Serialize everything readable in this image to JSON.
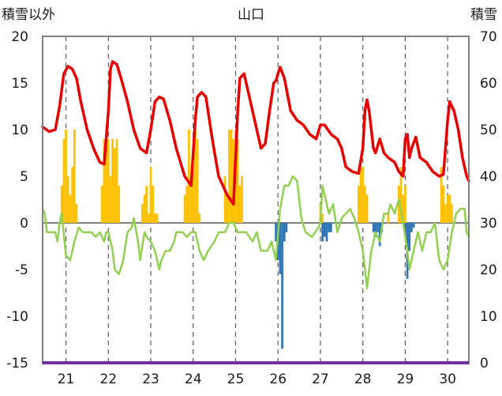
{
  "chart_data": {
    "type": "line",
    "title": "山口",
    "ylabel_left": "積雪以外",
    "ylabel_right": "積雪",
    "ylim_left": [
      -15,
      20
    ],
    "ylim_right": [
      0,
      70
    ],
    "yticks_left": [
      "20",
      "15",
      "10",
      "5",
      "0",
      "-5",
      "-10",
      "-15"
    ],
    "yticks_right": [
      "70",
      "60",
      "50",
      "40",
      "30",
      "20",
      "10",
      "0"
    ],
    "x_labels": [
      "21",
      "22",
      "23",
      "24",
      "25",
      "26",
      "27",
      "28",
      "29",
      "30"
    ],
    "x_range": [
      20.45,
      30.5
    ],
    "grid": "vertical dashed at each day, horizontal solid at y=0",
    "colors": {
      "temperature": "#e60000",
      "change_line": "#92d050",
      "positive_bars": "#ffc000",
      "negative_bars": "#2e75b6",
      "baseline": "#7030a0",
      "frame": "#7f7f7f"
    },
    "series": [
      {
        "key": "temperature",
        "color": "#e60000",
        "points": [
          [
            20.45,
            10.3
          ],
          [
            20.6,
            9.8
          ],
          [
            20.75,
            10
          ],
          [
            20.85,
            12.5
          ],
          [
            20.95,
            16
          ],
          [
            21.05,
            16.8
          ],
          [
            21.15,
            16.5
          ],
          [
            21.25,
            15.5
          ],
          [
            21.35,
            13
          ],
          [
            21.5,
            10
          ],
          [
            21.65,
            8
          ],
          [
            21.8,
            6.5
          ],
          [
            21.9,
            6.3
          ],
          [
            22.0,
            12
          ],
          [
            22.05,
            16.5
          ],
          [
            22.1,
            17.3
          ],
          [
            22.2,
            17
          ],
          [
            22.3,
            15.5
          ],
          [
            22.45,
            13
          ],
          [
            22.6,
            10
          ],
          [
            22.75,
            8
          ],
          [
            22.9,
            7.5
          ],
          [
            23.0,
            10
          ],
          [
            23.1,
            13
          ],
          [
            23.2,
            13.5
          ],
          [
            23.3,
            13.3
          ],
          [
            23.45,
            11
          ],
          [
            23.6,
            8
          ],
          [
            23.8,
            5
          ],
          [
            23.95,
            4
          ],
          [
            24.05,
            11
          ],
          [
            24.1,
            13.5
          ],
          [
            24.2,
            14
          ],
          [
            24.3,
            13.5
          ],
          [
            24.45,
            9
          ],
          [
            24.6,
            5
          ],
          [
            24.8,
            3
          ],
          [
            24.95,
            2
          ],
          [
            25.05,
            12
          ],
          [
            25.1,
            15.5
          ],
          [
            25.2,
            16
          ],
          [
            25.35,
            13
          ],
          [
            25.5,
            10
          ],
          [
            25.6,
            8
          ],
          [
            25.7,
            8.5
          ],
          [
            25.8,
            12
          ],
          [
            25.9,
            15
          ],
          [
            25.95,
            15.2
          ],
          [
            26.0,
            16
          ],
          [
            26.05,
            16.7
          ],
          [
            26.15,
            15.5
          ],
          [
            26.3,
            12
          ],
          [
            26.45,
            11
          ],
          [
            26.6,
            10.5
          ],
          [
            26.75,
            9.5
          ],
          [
            26.9,
            9
          ],
          [
            27.0,
            10.5
          ],
          [
            27.1,
            10.5
          ],
          [
            27.25,
            9.5
          ],
          [
            27.4,
            9
          ],
          [
            27.5,
            8
          ],
          [
            27.6,
            6
          ],
          [
            27.75,
            5.5
          ],
          [
            27.9,
            5.3
          ],
          [
            28.0,
            8
          ],
          [
            28.05,
            12
          ],
          [
            28.1,
            13.2
          ],
          [
            28.15,
            12
          ],
          [
            28.25,
            8
          ],
          [
            28.3,
            7.5
          ],
          [
            28.4,
            9
          ],
          [
            28.5,
            7.5
          ],
          [
            28.6,
            7
          ],
          [
            28.75,
            6.5
          ],
          [
            28.85,
            5.5
          ],
          [
            28.95,
            5
          ],
          [
            29.0,
            9
          ],
          [
            29.05,
            9.5
          ],
          [
            29.1,
            7
          ],
          [
            29.15,
            8
          ],
          [
            29.25,
            9.2
          ],
          [
            29.35,
            7
          ],
          [
            29.5,
            6.5
          ],
          [
            29.65,
            5.5
          ],
          [
            29.8,
            5
          ],
          [
            29.9,
            5.2
          ],
          [
            29.95,
            8
          ],
          [
            30.0,
            11
          ],
          [
            30.05,
            13
          ],
          [
            30.15,
            12
          ],
          [
            30.25,
            10
          ],
          [
            30.35,
            7
          ],
          [
            30.45,
            5
          ],
          [
            30.5,
            4.5
          ]
        ]
      },
      {
        "key": "change_line",
        "color": "#92d050",
        "points": [
          [
            20.45,
            1.5
          ],
          [
            20.5,
            1
          ],
          [
            20.55,
            -1
          ],
          [
            20.75,
            -1
          ],
          [
            20.8,
            -2
          ],
          [
            20.85,
            0
          ],
          [
            20.9,
            1
          ],
          [
            21.0,
            -3.5
          ],
          [
            21.1,
            -4
          ],
          [
            21.2,
            -2
          ],
          [
            21.3,
            -0.5
          ],
          [
            21.4,
            -1
          ],
          [
            21.6,
            -1
          ],
          [
            21.7,
            -1.5
          ],
          [
            21.8,
            -1
          ],
          [
            21.9,
            -2
          ],
          [
            21.95,
            -1
          ],
          [
            22.0,
            -1
          ],
          [
            22.1,
            -3
          ],
          [
            22.15,
            -5
          ],
          [
            22.25,
            -5.5
          ],
          [
            22.35,
            -4
          ],
          [
            22.45,
            -1
          ],
          [
            22.55,
            -0.5
          ],
          [
            22.6,
            0.5
          ],
          [
            22.7,
            -2
          ],
          [
            22.75,
            -4
          ],
          [
            22.85,
            -1
          ],
          [
            22.9,
            -1.5
          ],
          [
            23.0,
            -2
          ],
          [
            23.1,
            -3
          ],
          [
            23.2,
            -5
          ],
          [
            23.25,
            -4
          ],
          [
            23.35,
            -3
          ],
          [
            23.45,
            -3
          ],
          [
            23.55,
            -2
          ],
          [
            23.6,
            -1
          ],
          [
            23.75,
            -1
          ],
          [
            23.85,
            -1.5
          ],
          [
            23.95,
            -1
          ],
          [
            24.05,
            -1
          ],
          [
            24.15,
            -3
          ],
          [
            24.25,
            -4
          ],
          [
            24.35,
            -3
          ],
          [
            24.5,
            -2
          ],
          [
            24.6,
            -1
          ],
          [
            24.75,
            -1
          ],
          [
            24.85,
            0
          ],
          [
            24.95,
            0
          ],
          [
            25.05,
            -1
          ],
          [
            25.15,
            -1
          ],
          [
            25.25,
            -1
          ],
          [
            25.4,
            -2
          ],
          [
            25.5,
            -1
          ],
          [
            25.6,
            -3
          ],
          [
            25.75,
            -3
          ],
          [
            25.85,
            -2
          ],
          [
            25.95,
            -4
          ],
          [
            26.05,
            1.5
          ],
          [
            26.15,
            4
          ],
          [
            26.25,
            4
          ],
          [
            26.35,
            5
          ],
          [
            26.45,
            4.5
          ],
          [
            26.55,
            0.5
          ],
          [
            26.65,
            -1
          ],
          [
            26.8,
            -1.5
          ],
          [
            26.95,
            -0.5
          ],
          [
            27.0,
            0
          ],
          [
            27.05,
            4
          ],
          [
            27.1,
            3
          ],
          [
            27.2,
            1
          ],
          [
            27.3,
            2
          ],
          [
            27.4,
            -1
          ],
          [
            27.5,
            0.5
          ],
          [
            27.6,
            1
          ],
          [
            27.7,
            1.5
          ],
          [
            27.8,
            0.5
          ],
          [
            27.9,
            -1
          ],
          [
            28.0,
            -3
          ],
          [
            28.05,
            -5
          ],
          [
            28.1,
            -7
          ],
          [
            28.2,
            -3
          ],
          [
            28.3,
            -1
          ],
          [
            28.4,
            -2
          ],
          [
            28.5,
            1
          ],
          [
            28.6,
            1
          ],
          [
            28.65,
            2
          ],
          [
            28.75,
            1
          ],
          [
            28.85,
            2.5
          ],
          [
            28.95,
            0
          ],
          [
            29.05,
            -3
          ],
          [
            29.1,
            -5
          ],
          [
            29.2,
            -3
          ],
          [
            29.3,
            -1
          ],
          [
            29.4,
            -3
          ],
          [
            29.5,
            -1
          ],
          [
            29.6,
            -1
          ],
          [
            29.7,
            0
          ],
          [
            29.8,
            -4
          ],
          [
            29.9,
            -5
          ],
          [
            30.0,
            -4
          ],
          [
            30.1,
            -1
          ],
          [
            30.2,
            1
          ],
          [
            30.3,
            1.5
          ],
          [
            30.4,
            1.5
          ],
          [
            30.45,
            -1
          ],
          [
            30.5,
            -1.5
          ]
        ]
      },
      {
        "key": "positive_bars",
        "color": "#ffc000",
        "bars": [
          [
            20.9,
            4
          ],
          [
            20.95,
            9
          ],
          [
            21.0,
            10
          ],
          [
            21.05,
            5
          ],
          [
            21.1,
            3
          ],
          [
            21.15,
            6
          ],
          [
            21.2,
            10
          ],
          [
            21.25,
            2
          ],
          [
            21.85,
            4
          ],
          [
            21.9,
            9
          ],
          [
            21.95,
            9
          ],
          [
            22.0,
            9
          ],
          [
            22.05,
            5
          ],
          [
            22.1,
            9
          ],
          [
            22.15,
            8
          ],
          [
            22.2,
            9
          ],
          [
            22.25,
            4
          ],
          [
            22.8,
            2
          ],
          [
            22.85,
            3
          ],
          [
            22.9,
            4
          ],
          [
            22.95,
            1
          ],
          [
            23.0,
            6
          ],
          [
            23.05,
            4
          ],
          [
            23.1,
            1
          ],
          [
            23.15,
            1
          ],
          [
            23.8,
            3
          ],
          [
            23.85,
            4
          ],
          [
            23.9,
            10
          ],
          [
            23.95,
            5
          ],
          [
            24.0,
            6
          ],
          [
            24.05,
            10
          ],
          [
            24.1,
            9
          ],
          [
            24.15,
            1
          ],
          [
            24.75,
            5
          ],
          [
            24.8,
            3
          ],
          [
            24.85,
            10
          ],
          [
            24.9,
            10
          ],
          [
            24.95,
            9
          ],
          [
            25.0,
            10
          ],
          [
            25.05,
            9
          ],
          [
            25.1,
            4
          ],
          [
            25.15,
            5
          ],
          [
            27.0,
            2
          ],
          [
            27.05,
            1
          ],
          [
            27.9,
            4
          ],
          [
            27.95,
            6
          ],
          [
            28.0,
            6
          ],
          [
            28.05,
            4
          ],
          [
            28.1,
            3
          ],
          [
            28.6,
            1
          ],
          [
            28.85,
            4
          ],
          [
            28.9,
            6
          ],
          [
            28.95,
            3
          ],
          [
            29.0,
            4
          ],
          [
            29.85,
            6
          ],
          [
            29.9,
            4
          ],
          [
            29.95,
            2
          ],
          [
            30.0,
            3
          ],
          [
            30.05,
            3
          ],
          [
            30.1,
            2
          ]
        ]
      },
      {
        "key": "negative_bars",
        "color": "#2e75b6",
        "bars": [
          [
            25.95,
            -2
          ],
          [
            26.0,
            -4
          ],
          [
            26.05,
            -5.5
          ],
          [
            26.1,
            -13.5
          ],
          [
            26.15,
            -2
          ],
          [
            26.2,
            -1
          ],
          [
            27.05,
            -2
          ],
          [
            27.1,
            -1.5
          ],
          [
            27.15,
            -2
          ],
          [
            27.2,
            -1
          ],
          [
            27.25,
            -1
          ],
          [
            28.25,
            -1
          ],
          [
            28.3,
            -1.5
          ],
          [
            28.35,
            -1
          ],
          [
            28.4,
            -2.5
          ],
          [
            28.45,
            -1
          ],
          [
            29.0,
            -1.5
          ],
          [
            29.05,
            -6
          ],
          [
            29.1,
            -3
          ],
          [
            29.15,
            -1
          ],
          [
            29.2,
            -0.5
          ]
        ]
      }
    ]
  }
}
